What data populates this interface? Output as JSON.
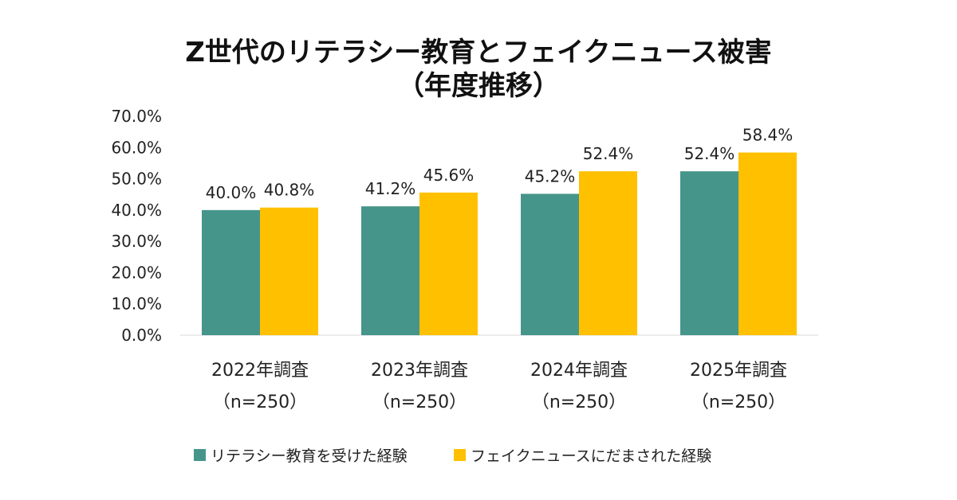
{
  "chart_data": {
    "type": "bar",
    "title": [
      "Z世代のリテラシー教育とフェイクニュース被害",
      "（年度推移）"
    ],
    "categories": [
      [
        "2022年調査",
        "（n=250）"
      ],
      [
        "2023年調査",
        "（n=250）"
      ],
      [
        "2024年調査",
        "（n=250）"
      ],
      [
        "2025年調査",
        "（n=250）"
      ]
    ],
    "series": [
      {
        "name": "リテラシー教育を受けた経験",
        "values": [
          40.0,
          41.2,
          45.2,
          52.4
        ],
        "labels": [
          "40.0%",
          "41.2%",
          "45.2%",
          "52.4%"
        ],
        "color": "#45958A"
      },
      {
        "name": "フェイクニュースにだまされた経験",
        "values": [
          40.8,
          45.6,
          52.4,
          58.4
        ],
        "labels": [
          "40.8%",
          "45.6%",
          "52.4%",
          "58.4%"
        ],
        "color": "#FFC000"
      }
    ],
    "ylim": [
      0,
      70
    ],
    "yticks": [
      0,
      10,
      20,
      30,
      40,
      50,
      60,
      70
    ],
    "ytick_labels": [
      "0.0%",
      "10.0%",
      "20.0%",
      "30.0%",
      "40.0%",
      "50.0%",
      "60.0%",
      "70.0%"
    ],
    "xlabel": "",
    "ylabel": "",
    "grid": false,
    "legend": "bottom"
  }
}
